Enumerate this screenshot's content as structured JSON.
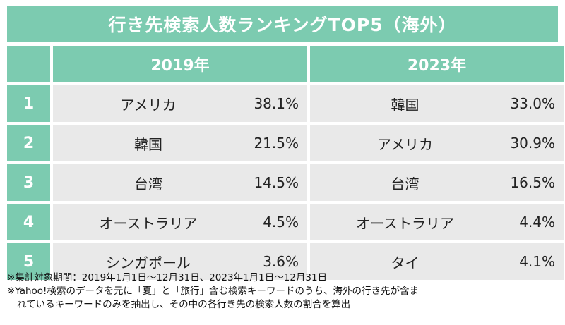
{
  "title": "行き先検索人数ランキングTOP5（海外）",
  "chart_data": {
    "type": "table",
    "columns": [
      "2019年",
      "2023年"
    ],
    "ranks": [
      "1",
      "2",
      "3",
      "4",
      "5"
    ],
    "rows": [
      {
        "y2019_name": "アメリカ",
        "y2019_pct": "38.1%",
        "y2023_name": "韓国",
        "y2023_pct": "33.0%"
      },
      {
        "y2019_name": "韓国",
        "y2019_pct": "21.5%",
        "y2023_name": "アメリカ",
        "y2023_pct": "30.9%"
      },
      {
        "y2019_name": "台湾",
        "y2019_pct": "14.5%",
        "y2023_name": "台湾",
        "y2023_pct": "16.5%"
      },
      {
        "y2019_name": "オーストラリア",
        "y2019_pct": "4.5%",
        "y2023_name": "オーストラリア",
        "y2023_pct": "4.4%"
      },
      {
        "y2019_name": "シンガポール",
        "y2019_pct": "3.6%",
        "y2023_name": "タイ",
        "y2023_pct": "4.1%"
      }
    ]
  },
  "notes": {
    "line1": "※集計対象期間：2019年1月1日〜12月31日、2023年1月1日〜12月31日",
    "line2": "※Yahoo!検索のデータを元に「夏」と「旅行」含む検索キーワードのうち、海外の行き先が含ま",
    "line3": "れているキーワードのみを抽出し、その中の各行き先の検索人数の割合を算出"
  },
  "colors": {
    "header_green": "#7ccbb0",
    "cell_gray": "#e9e9e9"
  }
}
